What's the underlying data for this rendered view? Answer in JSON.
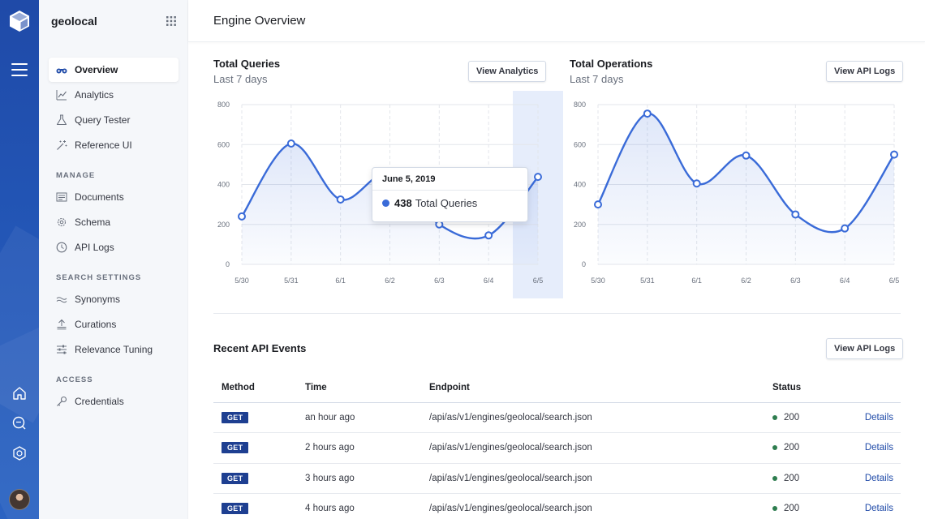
{
  "app": {
    "name": "geolocal"
  },
  "sidebar": {
    "primary": [
      {
        "label": "Overview",
        "icon": "binoculars-icon",
        "active": true
      },
      {
        "label": "Analytics",
        "icon": "analytics-icon"
      },
      {
        "label": "Query Tester",
        "icon": "flask-icon"
      },
      {
        "label": "Reference UI",
        "icon": "wand-icon"
      }
    ],
    "manage_title": "MANAGE",
    "manage": [
      {
        "label": "Documents",
        "icon": "documents-icon"
      },
      {
        "label": "Schema",
        "icon": "gear-icon"
      },
      {
        "label": "API Logs",
        "icon": "clock-icon"
      }
    ],
    "search_title": "SEARCH SETTINGS",
    "search": [
      {
        "label": "Synonyms",
        "icon": "wave-icon"
      },
      {
        "label": "Curations",
        "icon": "curations-icon"
      },
      {
        "label": "Relevance Tuning",
        "icon": "sliders-icon"
      }
    ],
    "access_title": "ACCESS",
    "access": [
      {
        "label": "Credentials",
        "icon": "key-icon"
      }
    ]
  },
  "header": {
    "title": "Engine Overview"
  },
  "queries_panel": {
    "title": "Total Queries",
    "subtitle": "Last 7 days",
    "button": "View Analytics"
  },
  "operations_panel": {
    "title": "Total Operations",
    "subtitle": "Last 7 days",
    "button": "View API Logs"
  },
  "tooltip": {
    "date": "June 5, 2019",
    "value": "438",
    "label": "Total Queries"
  },
  "events": {
    "title": "Recent API Events",
    "button": "View API Logs",
    "columns": [
      "Method",
      "Time",
      "Endpoint",
      "Status"
    ],
    "rows": [
      {
        "method": "GET",
        "time": "an hour ago",
        "endpoint": "/api/as/v1/engines/geolocal/search.json",
        "status": "200",
        "details": "Details"
      },
      {
        "method": "GET",
        "time": "2 hours ago",
        "endpoint": "/api/as/v1/engines/geolocal/search.json",
        "status": "200",
        "details": "Details"
      },
      {
        "method": "GET",
        "time": "3 hours ago",
        "endpoint": "/api/as/v1/engines/geolocal/search.json",
        "status": "200",
        "details": "Details"
      },
      {
        "method": "GET",
        "time": "4 hours ago",
        "endpoint": "/api/as/v1/engines/geolocal/search.json",
        "status": "200",
        "details": "Details"
      }
    ]
  },
  "colors": {
    "accent": "#3a6bd8",
    "rail": "#1f4aa8",
    "badge": "#1e3f91",
    "status_ok": "#2e7d4f"
  },
  "chart_data": [
    {
      "type": "area",
      "x": [
        "5/30",
        "5/31",
        "6/1",
        "6/2",
        "6/3",
        "6/4",
        "6/5"
      ],
      "series": [
        {
          "values": [
            240,
            605,
            325,
            460,
            200,
            145,
            438
          ]
        }
      ],
      "ylim": [
        0,
        800
      ],
      "yticks": [
        "0",
        "200",
        "400",
        "600",
        "800"
      ],
      "grid": true,
      "highlight": "6/5"
    },
    {
      "type": "area",
      "x": [
        "5/30",
        "5/31",
        "6/1",
        "6/2",
        "6/3",
        "6/4",
        "6/5"
      ],
      "series": [
        {
          "values": [
            300,
            755,
            405,
            545,
            250,
            180,
            550
          ]
        }
      ],
      "ylim": [
        0,
        800
      ],
      "yticks": [
        "0",
        "200",
        "400",
        "600",
        "800"
      ],
      "grid": true
    }
  ]
}
